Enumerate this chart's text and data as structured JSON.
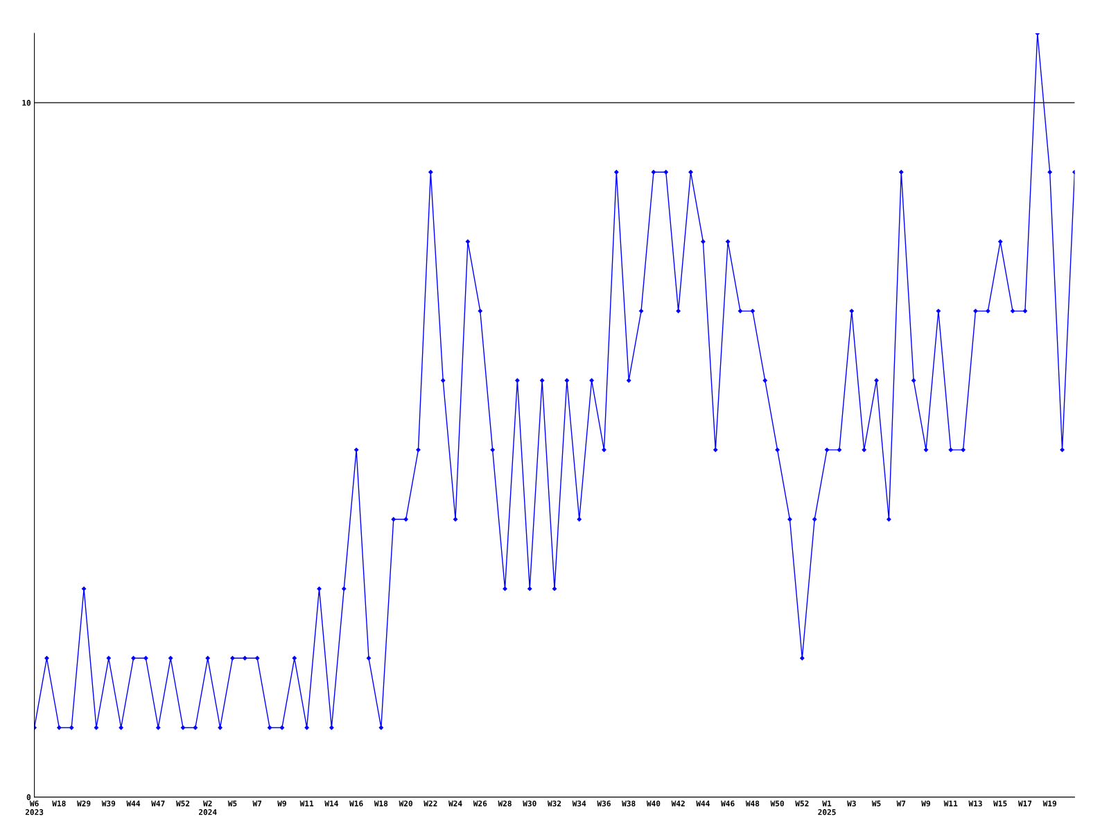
{
  "chart_data": {
    "type": "line",
    "categories": [
      "W6\n2023",
      null,
      "W18",
      null,
      "W29",
      null,
      "W39",
      null,
      "W44",
      null,
      "W47",
      null,
      "W52",
      null,
      "W2\n2024",
      null,
      "W5",
      null,
      "W7",
      null,
      "W9",
      null,
      "W11",
      null,
      "W14",
      null,
      "W16",
      null,
      "W18",
      null,
      "W20",
      null,
      "W22",
      null,
      "W24",
      null,
      "W26",
      null,
      "W28",
      null,
      "W30",
      null,
      "W32",
      null,
      "W34",
      null,
      "W36",
      null,
      "W38",
      null,
      "W40",
      null,
      "W42",
      null,
      "W44",
      null,
      "W46",
      null,
      "W48",
      null,
      "W50",
      null,
      "W52",
      null,
      "W1\n2025",
      null,
      "W3",
      null,
      "W5",
      null,
      "W7",
      null,
      "W9",
      null,
      "W11",
      null,
      "W13",
      null,
      "W15",
      null,
      "W17",
      null,
      "W19",
      null,
      null
    ],
    "series": [
      {
        "color": "#0000ff",
        "values": [
          1,
          2,
          1,
          1,
          3,
          1,
          2,
          1,
          2,
          2,
          1,
          2,
          1,
          1,
          2,
          1,
          2,
          2,
          2,
          1,
          1,
          2,
          1,
          3,
          1,
          3,
          5,
          2,
          1,
          4,
          4,
          5,
          9,
          6,
          4,
          8,
          7,
          5,
          3,
          6,
          3,
          6,
          3,
          6,
          4,
          6,
          5,
          9,
          6,
          7,
          9,
          9,
          7,
          9,
          8,
          5,
          8,
          7,
          7,
          6,
          5,
          4,
          2,
          4,
          5,
          5,
          7,
          5,
          6,
          4,
          9,
          6,
          5,
          7,
          5,
          5,
          7,
          7,
          8,
          7,
          7,
          11,
          9,
          5,
          9
        ]
      }
    ],
    "ylim": [
      0,
      11
    ],
    "yticks": [
      0,
      10
    ],
    "grid": "y",
    "marker": "diamond",
    "line_style": "solid"
  }
}
